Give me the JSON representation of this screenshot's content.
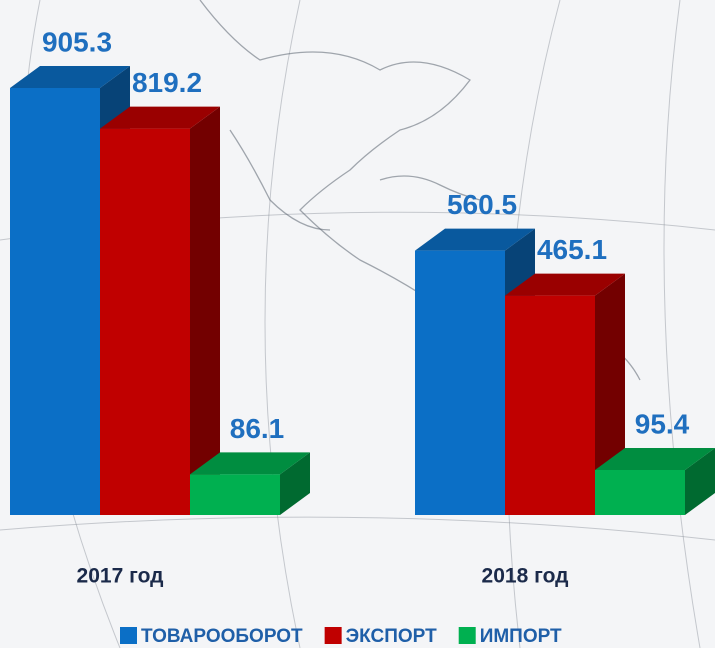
{
  "chart_data": {
    "type": "bar3d",
    "categories": [
      "2017 год",
      "2018 год"
    ],
    "series": [
      {
        "name": "ТОВАРООБОРОТ",
        "color": "#0b6fc6",
        "values": [
          905.3,
          560.5
        ]
      },
      {
        "name": "ЭКСПОРТ",
        "color": "#c00000",
        "values": [
          819.2,
          465.1
        ]
      },
      {
        "name": "ИМПОРТ",
        "color": "#00b050",
        "values": [
          86.1,
          95.4
        ]
      }
    ],
    "legend": "bottom"
  }
}
